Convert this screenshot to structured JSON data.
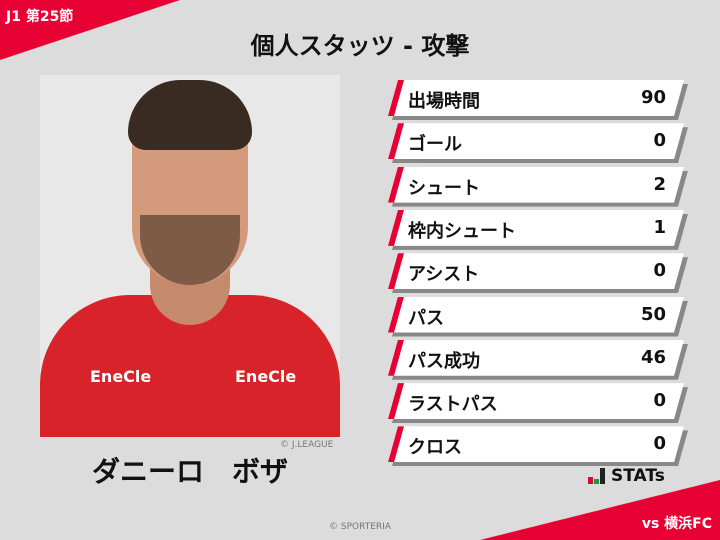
{
  "header": {
    "round": "J1 第25節",
    "title": "個人スタッツ - 攻撃",
    "opponent": "vs 横浜FC"
  },
  "player": {
    "name": "ダニーロ　ボザ",
    "photo_credit": "© J.LEAGUE",
    "shirt_sponsor": "EneCle"
  },
  "stats": [
    {
      "label": "出場時間",
      "value": "90"
    },
    {
      "label": "ゴール",
      "value": "0"
    },
    {
      "label": "シュート",
      "value": "2"
    },
    {
      "label": "枠内シュート",
      "value": "1"
    },
    {
      "label": "アシスト",
      "value": "0"
    },
    {
      "label": "パス",
      "value": "50"
    },
    {
      "label": "パス成功",
      "value": "46"
    },
    {
      "label": "ラストパス",
      "value": "0"
    },
    {
      "label": "クロス",
      "value": "0"
    }
  ],
  "brand": {
    "logo_text": "STATs",
    "copyright": "© SPORTERIA"
  },
  "colors": {
    "accent": "#e60033",
    "background": "#dcdcdc"
  }
}
